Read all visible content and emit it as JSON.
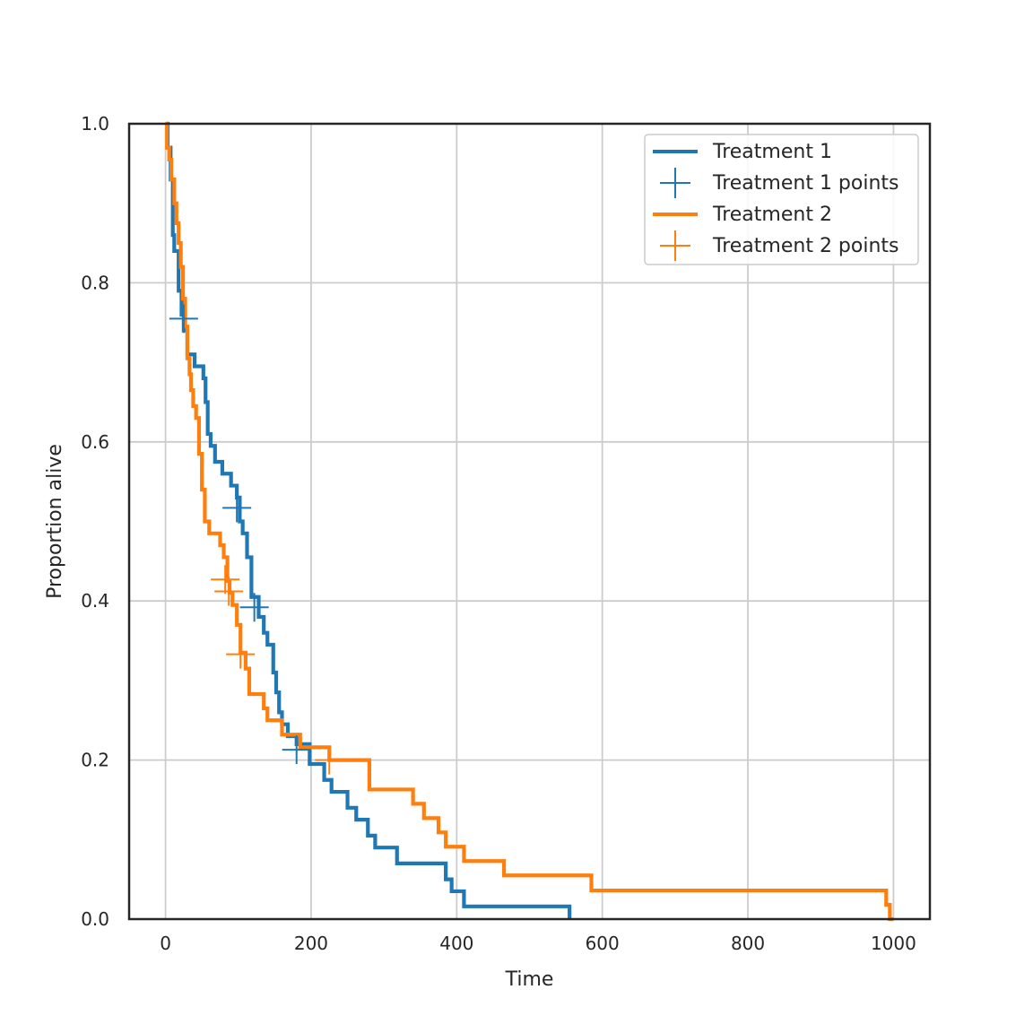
{
  "colors": {
    "treatment1": "#1f77b4",
    "treatment2": "#ff7f0e",
    "grid": "#cccccc",
    "axes": "#262626"
  },
  "chart_data": {
    "type": "line",
    "step": "post",
    "xlabel": "Time",
    "ylabel": "Proportion alive",
    "xlim": [
      -50,
      1050
    ],
    "ylim": [
      0.0,
      1.0
    ],
    "xticks": [
      0,
      200,
      400,
      600,
      800,
      1000
    ],
    "xtick_labels": [
      "0",
      "200",
      "400",
      "600",
      "800",
      "1000"
    ],
    "yticks": [
      0.0,
      0.2,
      0.4,
      0.6,
      0.8,
      1.0
    ],
    "ytick_labels": [
      "0.0",
      "0.2",
      "0.4",
      "0.6",
      "0.8",
      "1.0"
    ],
    "grid": true,
    "legend_position": "top-right",
    "legend": [
      "Treatment 1",
      "Treatment 1 points",
      "Treatment 2",
      "Treatment 2 points"
    ],
    "series": [
      {
        "name": "Treatment 1",
        "color_key": "treatment1",
        "x": [
          0,
          3,
          7,
          10,
          12,
          18,
          22,
          25,
          30,
          40,
          52,
          55,
          58,
          62,
          68,
          78,
          90,
          98,
          102,
          106,
          112,
          118,
          128,
          135,
          140,
          148,
          152,
          156,
          160,
          168,
          180,
          198,
          218,
          228,
          250,
          262,
          278,
          288,
          318,
          385,
          393,
          410,
          555
        ],
        "y": [
          1.0,
          0.97,
          0.93,
          0.86,
          0.84,
          0.79,
          0.76,
          0.74,
          0.71,
          0.695,
          0.68,
          0.65,
          0.61,
          0.595,
          0.575,
          0.56,
          0.545,
          0.53,
          0.5,
          0.485,
          0.455,
          0.405,
          0.38,
          0.36,
          0.345,
          0.31,
          0.285,
          0.26,
          0.245,
          0.23,
          0.22,
          0.195,
          0.175,
          0.16,
          0.14,
          0.125,
          0.105,
          0.09,
          0.07,
          0.05,
          0.035,
          0.016,
          0.0
        ]
      },
      {
        "name": "Treatment 2",
        "color_key": "treatment2",
        "x": [
          0,
          2,
          5,
          8,
          12,
          15,
          18,
          21,
          24,
          27,
          30,
          33,
          35,
          38,
          42,
          46,
          50,
          54,
          60,
          75,
          80,
          85,
          88,
          92,
          98,
          103,
          110,
          115,
          120,
          135,
          140,
          160,
          185,
          200,
          225,
          240,
          280,
          340,
          355,
          375,
          385,
          410,
          465,
          585,
          990,
          995,
          1000
        ],
        "y": [
          1.0,
          0.97,
          0.955,
          0.93,
          0.9,
          0.875,
          0.85,
          0.82,
          0.78,
          0.745,
          0.705,
          0.685,
          0.665,
          0.645,
          0.63,
          0.585,
          0.54,
          0.5,
          0.485,
          0.47,
          0.455,
          0.425,
          0.41,
          0.395,
          0.37,
          0.335,
          0.315,
          0.283,
          0.283,
          0.265,
          0.25,
          0.232,
          0.216,
          0.216,
          0.2,
          0.2,
          0.163,
          0.145,
          0.127,
          0.109,
          0.091,
          0.073,
          0.055,
          0.036,
          0.018,
          0.0,
          0.0
        ]
      }
    ],
    "marker_series": [
      {
        "name": "Treatment 1 points",
        "color_key": "treatment1",
        "points": [
          [
            25,
            0.755
          ],
          [
            98,
            0.517
          ],
          [
            122,
            0.392
          ],
          [
            180,
            0.213
          ]
        ]
      },
      {
        "name": "Treatment 2 points",
        "color_key": "treatment2",
        "points": [
          [
            82,
            0.427
          ],
          [
            87,
            0.412
          ],
          [
            103,
            0.333
          ],
          [
            225,
            0.2
          ]
        ]
      }
    ]
  }
}
